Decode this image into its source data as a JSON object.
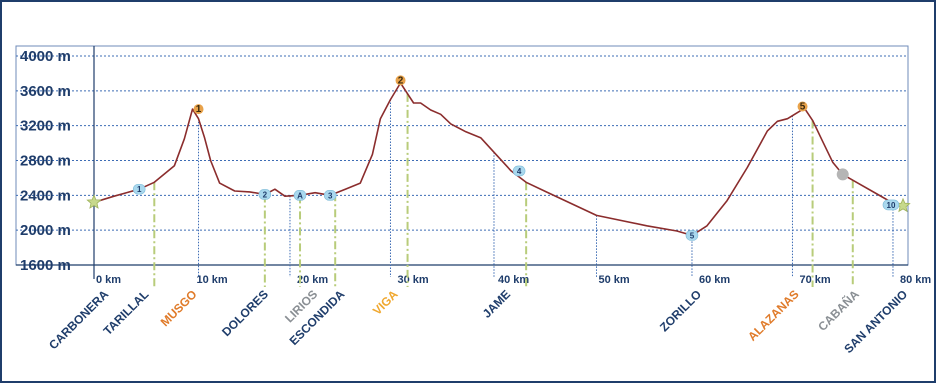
{
  "chart_data": {
    "type": "line",
    "title": "",
    "xlabel": "",
    "ylabel": "",
    "xlim": [
      0,
      80
    ],
    "ylim": [
      1600,
      4000
    ],
    "y_ticks": [
      {
        "value": 4000,
        "label": "4000 m"
      },
      {
        "value": 3600,
        "label": "3600 m"
      },
      {
        "value": 3200,
        "label": "3200 m"
      },
      {
        "value": 2800,
        "label": "2800 m"
      },
      {
        "value": 2400,
        "label": "2400 m"
      },
      {
        "value": 2000,
        "label": "2000 m"
      },
      {
        "value": 1600,
        "label": "1600 m"
      }
    ],
    "x_ticks": [
      {
        "value": 0,
        "label": "0 km"
      },
      {
        "value": 10,
        "label": "10 km"
      },
      {
        "value": 20,
        "label": "20 km"
      },
      {
        "value": 30,
        "label": "30 km"
      },
      {
        "value": 40,
        "label": "40 km"
      },
      {
        "value": 50,
        "label": "50 km"
      },
      {
        "value": 60,
        "label": "60 km"
      },
      {
        "value": 70,
        "label": "70 km"
      },
      {
        "value": 80,
        "label": "80 km"
      }
    ],
    "grid": {
      "horizontal": true,
      "vertical": false
    },
    "series": [
      {
        "color": "#8b2d2d",
        "x": [
          0,
          2,
          4.5,
          6,
          8,
          9,
          9.8,
          10.4,
          11,
          11.6,
          12.5,
          14,
          15.5,
          17,
          18,
          19,
          20.5,
          22,
          23.5,
          25,
          26.5,
          27.7,
          28.5,
          29.5,
          30.5,
          31,
          31.8,
          32.5,
          33.5,
          34.5,
          35.5,
          37,
          38.5,
          40,
          41.5,
          43,
          45,
          50,
          55,
          58,
          59.5,
          61,
          63,
          65,
          67,
          68,
          69,
          70,
          70.7,
          71.5,
          72.5,
          73.5,
          74.5,
          76,
          78,
          79.5,
          80.5
        ],
        "y": [
          2320,
          2390,
          2470,
          2550,
          2740,
          3050,
          3390,
          3280,
          3060,
          2800,
          2540,
          2450,
          2440,
          2410,
          2470,
          2390,
          2400,
          2430,
          2400,
          2470,
          2540,
          2870,
          3280,
          3500,
          3690,
          3600,
          3460,
          3460,
          3380,
          3330,
          3220,
          3130,
          3060,
          2870,
          2680,
          2550,
          2440,
          2170,
          2050,
          1990,
          1940,
          2050,
          2340,
          2720,
          3140,
          3250,
          3280,
          3350,
          3400,
          3260,
          3020,
          2780,
          2640,
          2540,
          2410,
          2310,
          2280
        ]
      }
    ],
    "numbered_markers": [
      {
        "label": "1",
        "x": 4.5,
        "y": 2470
      },
      {
        "label": "2",
        "x": 17,
        "y": 2410
      },
      {
        "label": "A",
        "x": 20.5,
        "y": 2400
      },
      {
        "label": "3",
        "x": 23.5,
        "y": 2400
      },
      {
        "label": "4",
        "x": 42.3,
        "y": 2680
      },
      {
        "label": "5",
        "x": 59.5,
        "y": 1940
      },
      {
        "label": "10",
        "x": 79.3,
        "y": 2290
      }
    ],
    "summit_markers": [
      {
        "label": "1",
        "x": 10.4,
        "y": 3390
      },
      {
        "label": "2",
        "x": 30.5,
        "y": 3720
      },
      {
        "label": "5",
        "x": 70.5,
        "y": 3420
      }
    ],
    "start_end_markers": [
      {
        "x": 0,
        "y": 2320
      },
      {
        "x": 80.5,
        "y": 2280
      }
    ],
    "hut_marker": {
      "x": 74.5,
      "y": 2640
    },
    "place_names": [
      {
        "name": "CARBONERA",
        "x": 1.5,
        "color": "#1f3d6b"
      },
      {
        "name": "TARILLAL",
        "x": 5.5,
        "color": "#1f3d6b"
      },
      {
        "name": "MUSGO",
        "x": 10.3,
        "color": "#e07b2a"
      },
      {
        "name": "DOLORES",
        "x": 17.4,
        "color": "#1f3d6b"
      },
      {
        "name": "LIRIOS",
        "x": 22.3,
        "color": "#8a8f94"
      },
      {
        "name": "ESCONDIDA",
        "x": 25.0,
        "color": "#1f3d6b"
      },
      {
        "name": "VIGA",
        "x": 30.3,
        "color": "#f0a830"
      },
      {
        "name": "JAME",
        "x": 41.5,
        "color": "#1f3d6b"
      },
      {
        "name": "ZORILLO",
        "x": 60.5,
        "color": "#1f3d6b"
      },
      {
        "name": "ALAZANAS",
        "x": 70.2,
        "color": "#e07b2a"
      },
      {
        "name": "CABAÑA",
        "x": 76.2,
        "color": "#8a8f94"
      },
      {
        "name": "SAN ANTONIO",
        "x": 81.0,
        "color": "#1f3d6b"
      }
    ],
    "blue_drop_lines_x": [
      10.4,
      19.5,
      29.5,
      39.8,
      50,
      59.5,
      69.5,
      79.5
    ],
    "green_drop_lines_x": [
      6,
      17,
      20.5,
      24,
      31.2,
      43,
      71.5,
      75.5
    ]
  }
}
